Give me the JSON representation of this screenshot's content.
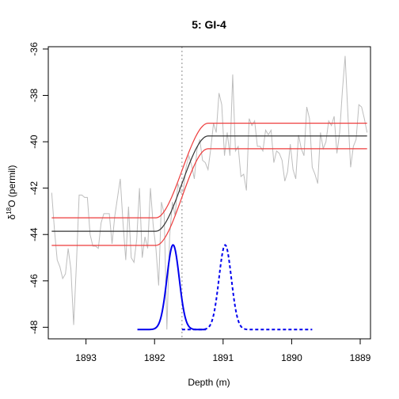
{
  "chart_data": {
    "type": "line",
    "title": "5: GI-4",
    "xlabel": "Depth (m)",
    "ylabel_prefix": "δ",
    "ylabel_sup": "18",
    "ylabel_suffix": "O (permil)",
    "xlim": [
      1893.55,
      1888.85
    ],
    "ylim": [
      -48.5,
      -35.9
    ],
    "x_ticks": [
      1893,
      1892,
      1891,
      1890,
      1889
    ],
    "y_ticks": [
      -48,
      -46,
      -44,
      -42,
      -40,
      -38,
      -36
    ],
    "grid": false,
    "vline": {
      "x": 1891.6,
      "style": "dotted",
      "color": "#a0a0a0"
    },
    "series": [
      {
        "role": "data",
        "color": "#bdbdbd",
        "x": [
          1893.5,
          1893.46,
          1893.42,
          1893.38,
          1893.34,
          1893.3,
          1893.26,
          1893.22,
          1893.18,
          1893.14,
          1893.1,
          1893.06,
          1893.02,
          1892.98,
          1892.94,
          1892.9,
          1892.86,
          1892.82,
          1892.78,
          1892.74,
          1892.7,
          1892.66,
          1892.62,
          1892.58,
          1892.54,
          1892.5,
          1892.46,
          1892.42,
          1892.38,
          1892.34,
          1892.3,
          1892.26,
          1892.22,
          1892.18,
          1892.14,
          1892.1,
          1892.06,
          1892.02,
          1891.98,
          1891.94,
          1891.9,
          1891.86,
          1891.82,
          1891.78,
          1891.74,
          1891.7,
          1891.66,
          1891.62,
          1891.58,
          1891.54,
          1891.5,
          1891.46,
          1891.42,
          1891.38,
          1891.34,
          1891.3,
          1891.26,
          1891.22,
          1891.18,
          1891.14,
          1891.1,
          1891.06,
          1891.02,
          1890.98,
          1890.94,
          1890.9,
          1890.86,
          1890.82,
          1890.78,
          1890.74,
          1890.7,
          1890.66,
          1890.62,
          1890.58,
          1890.54,
          1890.5,
          1890.46,
          1890.42,
          1890.38,
          1890.34,
          1890.3,
          1890.26,
          1890.22,
          1890.18,
          1890.14,
          1890.1,
          1890.06,
          1890.02,
          1889.98,
          1889.94,
          1889.9,
          1889.86,
          1889.82,
          1889.78,
          1889.74,
          1889.7,
          1889.66,
          1889.62,
          1889.58,
          1889.54,
          1889.5,
          1889.46,
          1889.42,
          1889.38,
          1889.34,
          1889.3,
          1889.26,
          1889.22,
          1889.18,
          1889.14,
          1889.1,
          1889.06,
          1889.02,
          1888.98,
          1888.94,
          1888.9
        ],
        "y": [
          -42.2,
          -43.8,
          -45.1,
          -45.4,
          -45.9,
          -45.7,
          -44.6,
          -45.5,
          -47.9,
          -45.3,
          -42.3,
          -42.3,
          -42.4,
          -42.4,
          -44.0,
          -44.5,
          -44.5,
          -44.6,
          -43.5,
          -43.1,
          -43.1,
          -43.1,
          -44.4,
          -43.2,
          -42.4,
          -41.6,
          -43.5,
          -45.1,
          -42.8,
          -45.0,
          -45.2,
          -44.2,
          -42.0,
          -45.0,
          -44.1,
          -44.6,
          -42.0,
          -43.6,
          -44.6,
          -46.2,
          -42.6,
          -43.1,
          -48.1,
          -44.1,
          -42.6,
          -43.2,
          -41.8,
          -42.2,
          -42.1,
          -41.1,
          -40.6,
          -41.0,
          -41.6,
          -40.3,
          -39.9,
          -40.8,
          -40.9,
          -41.2,
          -40.3,
          -39.2,
          -39.6,
          -37.9,
          -38.4,
          -40.6,
          -39.6,
          -40.6,
          -37.1,
          -40.4,
          -40.2,
          -41.5,
          -41.4,
          -42.1,
          -39.0,
          -39.3,
          -39.1,
          -40.2,
          -40.2,
          -40.4,
          -39.5,
          -39.7,
          -39.5,
          -40.9,
          -40.4,
          -40.5,
          -40.8,
          -41.7,
          -41.3,
          -40.1,
          -41.2,
          -41.6,
          -39.7,
          -40.3,
          -40.6,
          -38.5,
          -39.0,
          -41.1,
          -41.4,
          -41.8,
          -39.6,
          -40.3,
          -40.0,
          -39.1,
          -39.3,
          -38.9,
          -40.5,
          -39.6,
          -37.8,
          -36.3,
          -38.8,
          -41.1,
          -40.2,
          -39.9,
          -38.4,
          -38.5,
          -39.0,
          -39.6
        ]
      },
      {
        "role": "fit",
        "color": "#333333",
        "x0": 1891.6,
        "width": 0.38,
        "y_low": -43.86,
        "y_high": -39.75
      },
      {
        "role": "upper",
        "color": "#ee3b3b",
        "x0": 1891.6,
        "width": 0.38,
        "y_low": -43.28,
        "y_high": -39.2
      },
      {
        "role": "lower",
        "color": "#ee3b3b",
        "x0": 1891.6,
        "width": 0.38,
        "y_low": -44.47,
        "y_high": -40.3
      }
    ],
    "densities": [
      {
        "name": "t0",
        "color": "#0000ee",
        "style": "solid",
        "mean": 1891.73,
        "sd": 0.09,
        "x_from": 1892.25,
        "x_to": 1891.25,
        "base": -48.1,
        "peak": -44.45
      },
      {
        "name": "t1",
        "color": "#0000ee",
        "style": "dashed",
        "mean": 1890.97,
        "sd": 0.09,
        "x_from": 1891.6,
        "x_to": 1889.7,
        "base": -48.1,
        "peak": -44.45
      }
    ]
  }
}
